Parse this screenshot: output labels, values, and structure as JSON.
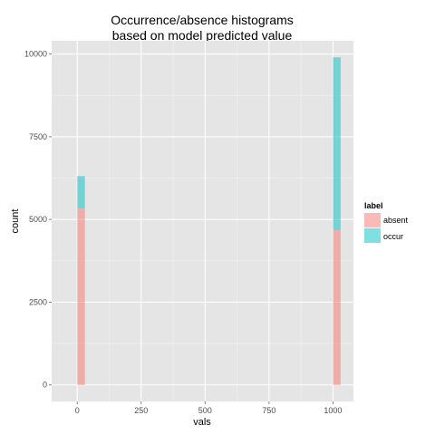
{
  "chart_data": {
    "type": "bar",
    "stacked": true,
    "title_lines": [
      "Occurrence/absence histograms",
      "based on model predicted value"
    ],
    "xlabel": "vals",
    "ylabel": "count",
    "xlim": [
      -100,
      1080
    ],
    "ylim": [
      -500,
      10400
    ],
    "x_ticks": [
      0,
      250,
      500,
      750,
      1000
    ],
    "y_ticks": [
      0,
      2500,
      5000,
      7500,
      10000
    ],
    "bin_width": 30,
    "bins": [
      {
        "x": 0,
        "values": [
          5330,
          980
        ]
      },
      {
        "x": 1000,
        "values": [
          4690,
          5210
        ]
      }
    ],
    "series": [
      {
        "name": "absent",
        "color": "#F8766D"
      },
      {
        "name": "occur",
        "color": "#00BFC4"
      }
    ],
    "fill_alpha": 0.5,
    "legend": {
      "title": "label",
      "position": "right"
    },
    "background_color": "#E5E5E5",
    "grid": true
  }
}
